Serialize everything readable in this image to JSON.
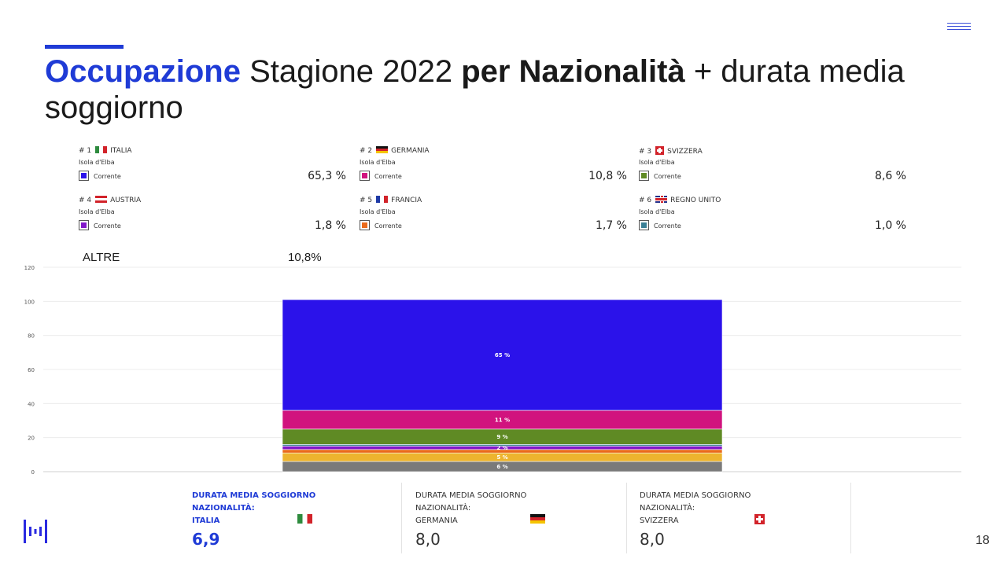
{
  "header": {
    "title_part1": "Occupazione",
    "title_part2": " Stagione 2022 ",
    "title_part3": "per Nazionalità",
    "title_part4": " + durata media soggiorno"
  },
  "legend": [
    {
      "rank": "# 1",
      "country": "ITALIA",
      "location": "Isola d'Elba",
      "series": "Corrente",
      "value": "65,3 %",
      "color": "#2b12ea"
    },
    {
      "rank": "# 2",
      "country": "GERMANIA",
      "location": "Isola d'Elba",
      "series": "Corrente",
      "value": "10,8 %",
      "color": "#d1137e"
    },
    {
      "rank": "# 3",
      "country": "SVIZZERA",
      "location": "Isola d'Elba",
      "series": "Corrente",
      "value": "8,6 %",
      "color": "#5f8a24"
    },
    {
      "rank": "# 4",
      "country": "AUSTRIA",
      "location": "Isola d'Elba",
      "series": "Corrente",
      "value": "1,8 %",
      "color": "#8218c9"
    },
    {
      "rank": "# 5",
      "country": "FRANCIA",
      "location": "Isola d'Elba",
      "series": "Corrente",
      "value": "1,7 %",
      "color": "#ea6a1c"
    },
    {
      "rank": "# 6",
      "country": "REGNO UNITO",
      "location": "Isola d'Elba",
      "series": "Corrente",
      "value": "1,0 %",
      "color": "#3b8096"
    }
  ],
  "altre": {
    "label": "ALTRE",
    "value": "10,8%"
  },
  "chart_data": {
    "type": "bar",
    "stacked": true,
    "categories": [
      ""
    ],
    "ylim": [
      0,
      120
    ],
    "yticks": [
      0,
      20,
      40,
      60,
      80,
      100,
      120
    ],
    "grid": true,
    "series": [
      {
        "values": [
          6
        ],
        "label": "6 %",
        "color": "#7a7a7a"
      },
      {
        "values": [
          5
        ],
        "label": "5 %",
        "color": "#edb42e"
      },
      {
        "values": [
          2
        ],
        "label": "",
        "color": "#ea6a1c"
      },
      {
        "values": [
          2
        ],
        "label": "2 %",
        "color": "#8218c9"
      },
      {
        "values": [
          1
        ],
        "label": "",
        "color": "#3b8096"
      },
      {
        "values": [
          9
        ],
        "label": "9 %",
        "color": "#5f8a24"
      },
      {
        "values": [
          11
        ],
        "label": "11 %",
        "color": "#d1137e"
      },
      {
        "values": [
          65
        ],
        "label": "65 %",
        "color": "#2b12ea"
      }
    ]
  },
  "stats": [
    {
      "line1": "DURATA MEDIA SOGGIORNO",
      "line2": "NAZIONALITÀ:",
      "line3": "ITALIA",
      "value": "6,9"
    },
    {
      "line1": "DURATA MEDIA SOGGIORNO",
      "line2": "NAZIONALITÀ:",
      "line3": "GERMANIA",
      "value": "8,0"
    },
    {
      "line1": "DURATA MEDIA SOGGIORNO",
      "line2": "NAZIONALITÀ:",
      "line3": "SVIZZERA",
      "value": "8,0"
    }
  ],
  "footer": {
    "page_number": "18"
  }
}
